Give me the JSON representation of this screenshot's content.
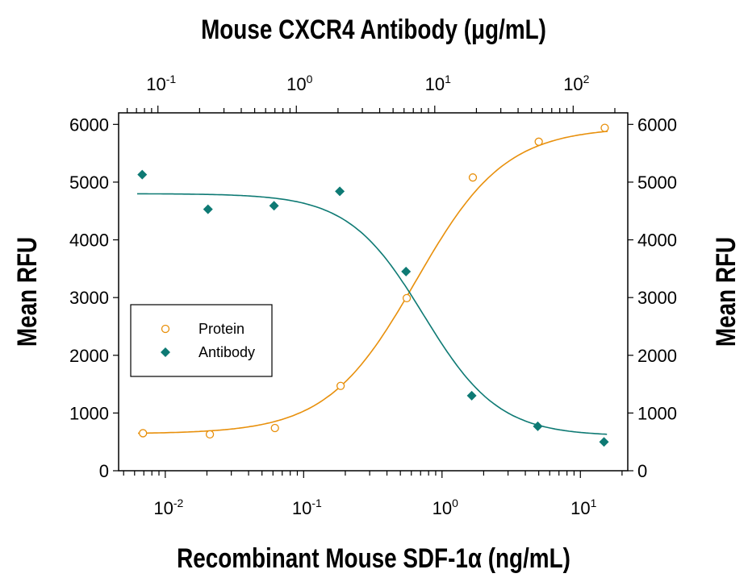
{
  "chart_data": {
    "type": "scatter",
    "title": "Mouse CXCR4 Antibody (μg/mL)",
    "xlabel": "Recombinant Mouse SDF-1α (ng/mL)",
    "ylabel_left": "Mean RFU",
    "ylabel_right": "Mean RFU",
    "x_scale": "log",
    "xlim": [
      0.0046,
      22
    ],
    "x_ticks": [
      {
        "base": "10",
        "exp": "-2",
        "value": 0.01
      },
      {
        "base": "10",
        "exp": "-1",
        "value": 0.1
      },
      {
        "base": "10",
        "exp": "0",
        "value": 1
      },
      {
        "base": "10",
        "exp": "1",
        "value": 10
      }
    ],
    "top_axis": {
      "label": "Mouse CXCR4 Antibody (μg/mL)",
      "scale": "log",
      "xlim": [
        0.052,
        248
      ],
      "ticks": [
        {
          "base": "10",
          "exp": "-1",
          "value": 0.1
        },
        {
          "base": "10",
          "exp": "0",
          "value": 1
        },
        {
          "base": "10",
          "exp": "1",
          "value": 10
        },
        {
          "base": "10",
          "exp": "2",
          "value": 100
        }
      ]
    },
    "ylim": [
      0,
      6200
    ],
    "y_ticks": [
      "0",
      "1000",
      "2000",
      "3000",
      "4000",
      "5000",
      "6000"
    ],
    "grid": false,
    "legend_position": "center-left",
    "series": [
      {
        "name": "Protein",
        "color": "#E8900C",
        "marker": "open-circle",
        "axis": "bottom",
        "x": [
          0.0069,
          0.021,
          0.062,
          0.185,
          0.556,
          1.67,
          5,
          15
        ],
        "y": [
          650,
          630,
          740,
          1470,
          2990,
          5080,
          5700,
          5940
        ],
        "fit": {
          "bottom": 640,
          "top": 5950,
          "ec50": 0.65,
          "hill": 1.35
        }
      },
      {
        "name": "Antibody",
        "color": "#0E7A74",
        "marker": "filled-diamond",
        "axis": "top",
        "x": [
          0.077,
          0.23,
          0.69,
          2.06,
          6.2,
          18.5,
          55.5,
          167
        ],
        "y": [
          5130,
          4530,
          4590,
          4840,
          3450,
          1300,
          770,
          500
        ],
        "fit": {
          "bottom": 600,
          "top": 4800,
          "ec50": 8.3,
          "hill": 1.6
        }
      }
    ]
  }
}
